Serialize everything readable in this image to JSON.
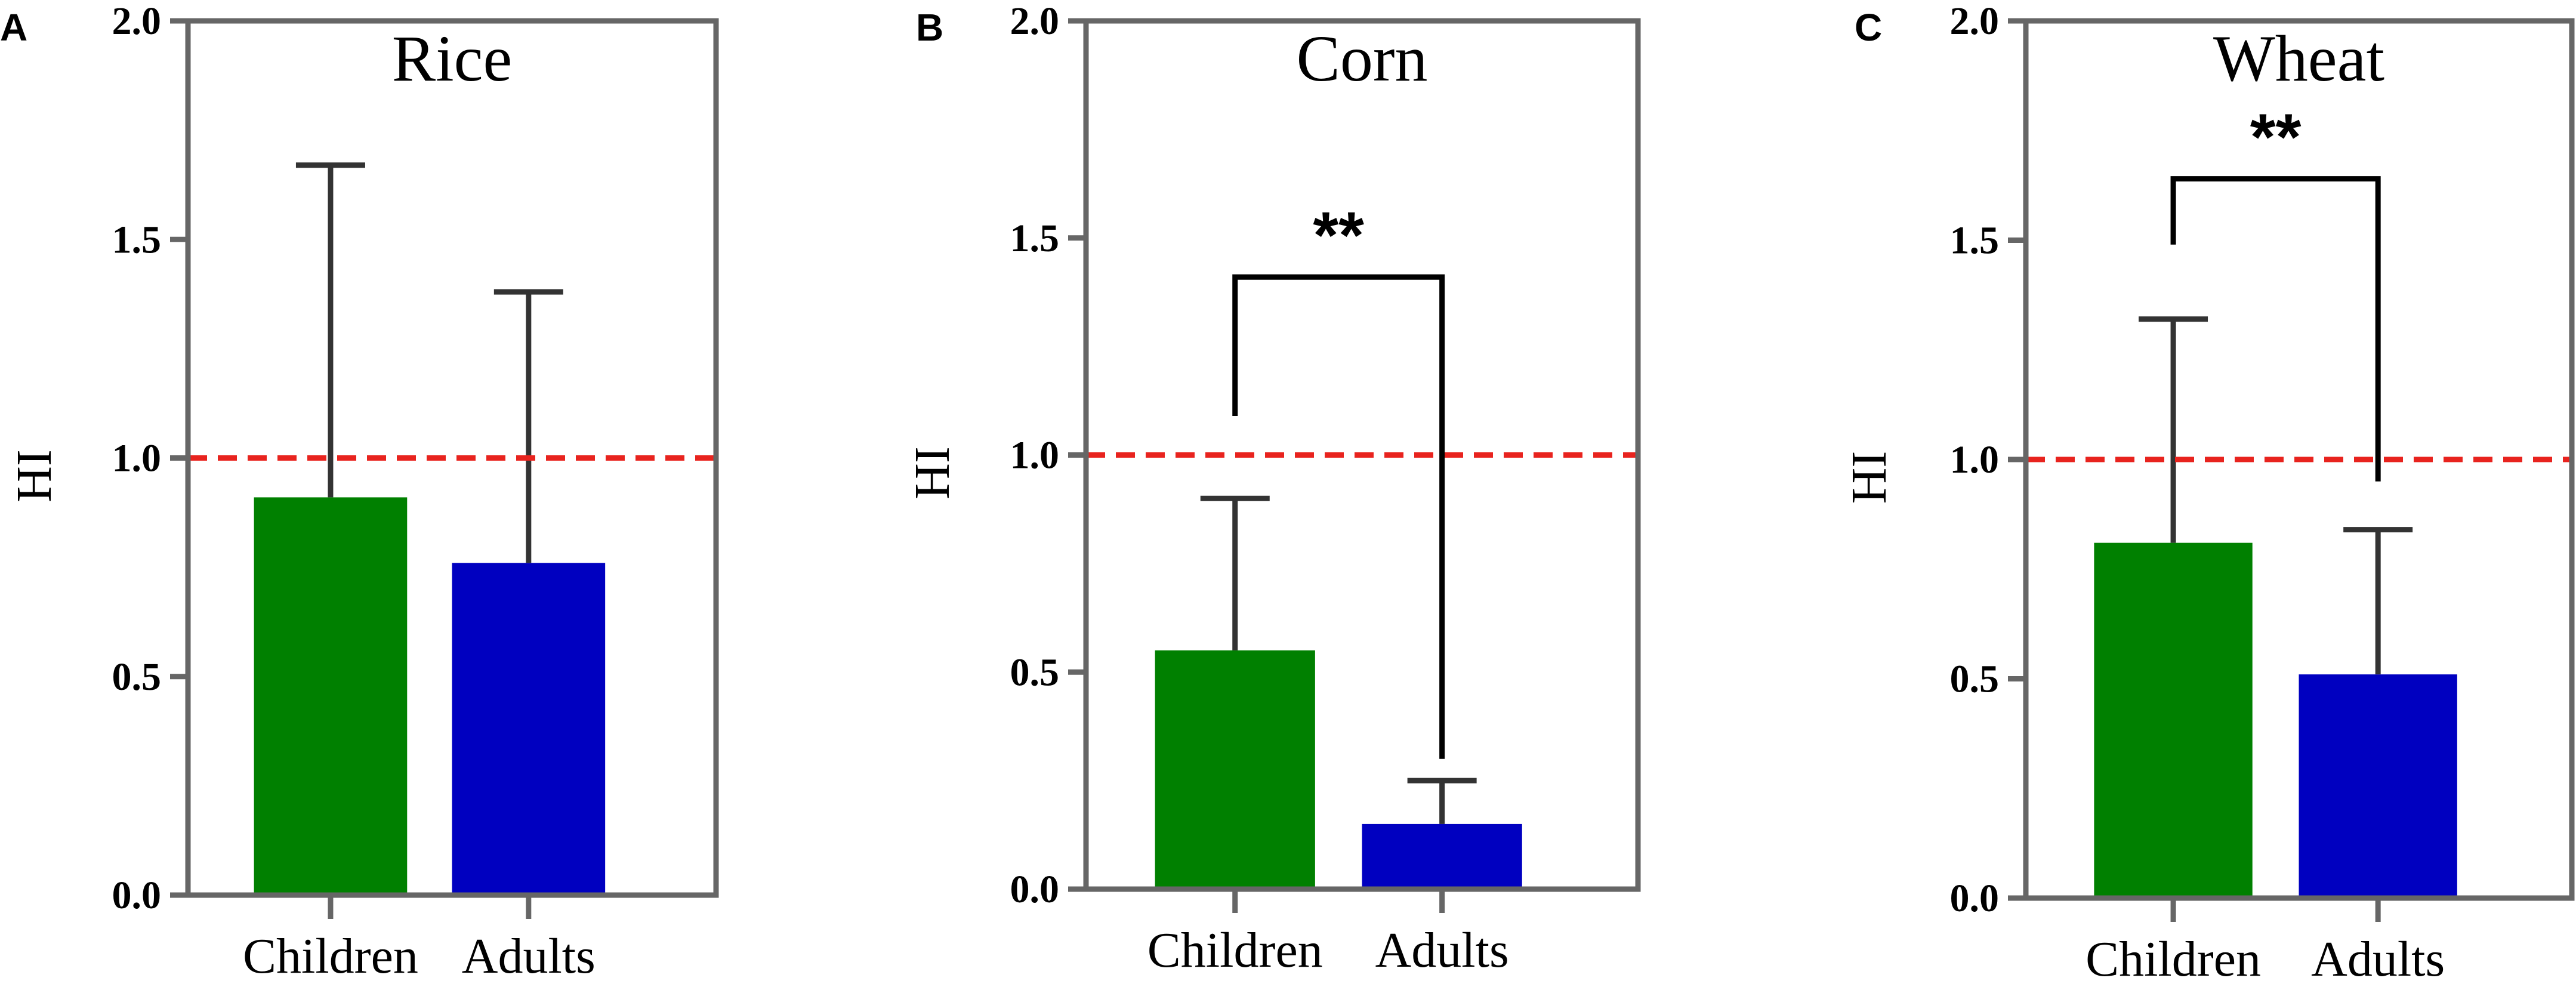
{
  "chart_data": [
    {
      "type": "bar",
      "panel_label": "A",
      "title": "Rice",
      "ylabel": "HI",
      "xlabel": "",
      "ylim": [
        0,
        2.0
      ],
      "yticks": [
        0.0,
        0.5,
        1.0,
        1.5,
        2.0
      ],
      "ytick_labels": [
        "0.0",
        "0.5",
        "1.0",
        "1.5",
        "2.0"
      ],
      "categories": [
        "Children",
        "Adults"
      ],
      "values": [
        0.91,
        0.76
      ],
      "error_upper": [
        1.67,
        1.38
      ],
      "bar_colors": [
        "#008000",
        "#0000C0"
      ],
      "reference_line": {
        "y": 1.0,
        "color": "#E8231E",
        "style": "dashed"
      },
      "significance": null
    },
    {
      "type": "bar",
      "panel_label": "B",
      "title": "Corn",
      "ylabel": "HI",
      "xlabel": "",
      "ylim": [
        0,
        2.0
      ],
      "yticks": [
        0.0,
        0.5,
        1.0,
        1.5,
        2.0
      ],
      "ytick_labels": [
        "0.0",
        "0.5",
        "1.0",
        "1.5",
        "2.0"
      ],
      "categories": [
        "Children",
        "Adults"
      ],
      "values": [
        0.55,
        0.15
      ],
      "error_upper": [
        0.9,
        0.25
      ],
      "bar_colors": [
        "#008000",
        "#0000C0"
      ],
      "reference_line": {
        "y": 1.0,
        "color": "#E8231E",
        "style": "dashed"
      },
      "significance": {
        "label": "**",
        "bracket_y": 1.41,
        "left_end": 1.09,
        "right_end": 0.3
      }
    },
    {
      "type": "bar",
      "panel_label": "C",
      "title": "Wheat",
      "ylabel": "HI",
      "xlabel": "",
      "ylim": [
        0,
        2.0
      ],
      "yticks": [
        0.0,
        0.5,
        1.0,
        1.5,
        2.0
      ],
      "ytick_labels": [
        "0.0",
        "0.5",
        "1.0",
        "1.5",
        "2.0"
      ],
      "categories": [
        "Children",
        "Adults"
      ],
      "values": [
        0.81,
        0.51
      ],
      "error_upper": [
        1.32,
        0.84
      ],
      "bar_colors": [
        "#008000",
        "#0000C0"
      ],
      "reference_line": {
        "y": 1.0,
        "color": "#E8231E",
        "style": "dashed"
      },
      "significance": {
        "label": "**",
        "bracket_y": 1.64,
        "left_end": 1.49,
        "right_end": 0.95
      }
    }
  ],
  "style": {
    "axis_color": "#666666",
    "errorbar_color": "#333333",
    "bracket_color": "#000000",
    "text_color": "#000000"
  }
}
